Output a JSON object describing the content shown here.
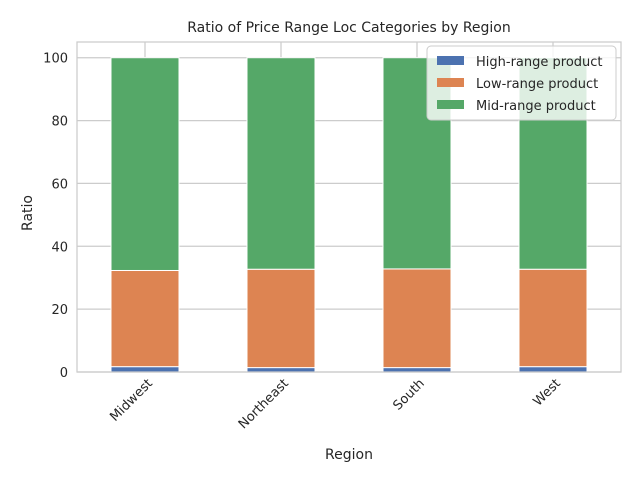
{
  "chart_data": {
    "type": "bar",
    "stacked": true,
    "title": "Ratio of Price Range Loc Categories by Region",
    "xlabel": "Region",
    "ylabel": "Ratio",
    "ylim": [
      0,
      105
    ],
    "yticks": [
      0,
      20,
      40,
      60,
      80,
      100
    ],
    "categories": [
      "Midwest",
      "Northeast",
      "South",
      "West"
    ],
    "series": [
      {
        "name": "High-range product",
        "color": "#4c72b0",
        "values": [
          1.7,
          1.4,
          1.4,
          1.7
        ]
      },
      {
        "name": "Low-range product",
        "color": "#dd8452",
        "values": [
          30.6,
          31.3,
          31.4,
          31.0
        ]
      },
      {
        "name": "Mid-range product",
        "color": "#55a868",
        "values": [
          67.7,
          67.3,
          67.2,
          67.3
        ]
      }
    ],
    "grid": true,
    "legend_position": "top-right"
  }
}
